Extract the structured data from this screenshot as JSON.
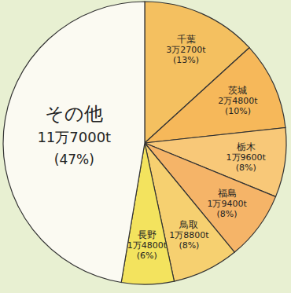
{
  "chart_data": {
    "type": "pie",
    "categories": [
      "千葉",
      "茨城",
      "栃木",
      "福島",
      "鳥取",
      "長野",
      "その他"
    ],
    "values": [
      32700,
      24800,
      19600,
      19400,
      18800,
      14800,
      117000
    ],
    "value_labels": [
      "3万2700t",
      "2万4800t",
      "1万9600t",
      "1万9400t",
      "1万8800t",
      "1万4800t",
      "11万7000t"
    ],
    "percents": [
      13,
      10,
      8,
      8,
      8,
      6,
      47
    ],
    "percent_labels": [
      "(13%)",
      "(10%)",
      "(8%)",
      "(8%)",
      "(8%)",
      "(6%)",
      "(47%)"
    ],
    "colors": [
      "#f4c060",
      "#f6b85a",
      "#f8c878",
      "#f5b468",
      "#f6d070",
      "#f3e35e",
      "#fbfaf2"
    ],
    "data_labels": true
  }
}
